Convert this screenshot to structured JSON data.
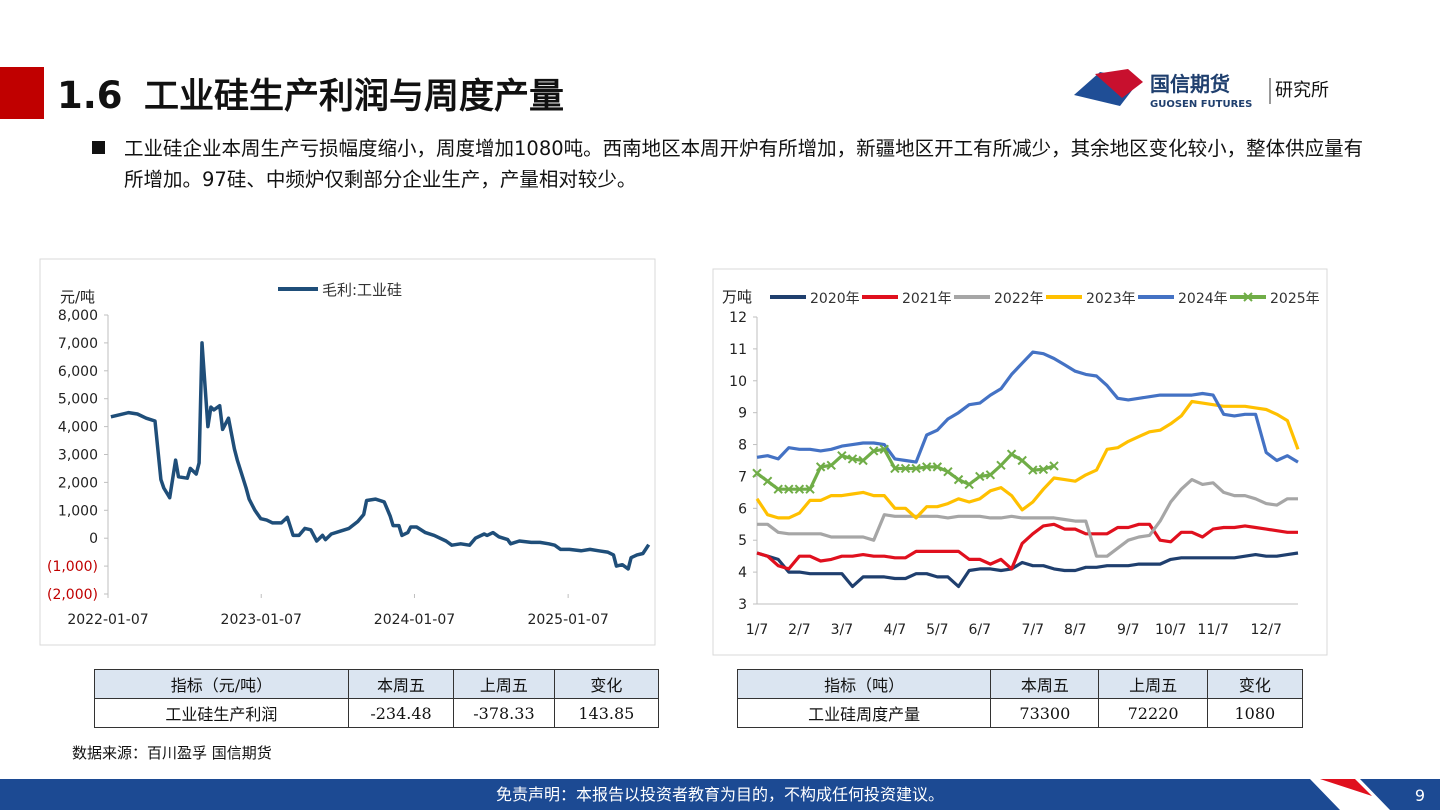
{
  "header": {
    "section": "1.6",
    "title": "工业硅生产利润与周度产量",
    "logo_cn": "国信期货",
    "logo_en": "GUOSEN FUTURES",
    "logo_dept": "研究所"
  },
  "bullet": "工业硅企业本周生产亏损幅度缩小，周度增加1080吨。西南地区本周开炉有所增加，新疆地区开工有所减少，其余地区变化较小，整体供应量有所增加。97硅、中频炉仅剩部分企业生产，产量相对较少。",
  "chart_data": [
    {
      "type": "line",
      "y_label": "元/吨",
      "grid": false,
      "legend": "top",
      "negative_label_color": "#c00000",
      "xlim": [
        "2022-01-07",
        "2025-07-21"
      ],
      "xticks": [
        "2022-01-07",
        "2023-01-07",
        "2024-01-07",
        "2025-01-07"
      ],
      "ylim": [
        -2000,
        8000
      ],
      "yticks": [
        {
          "value": 8000,
          "label": "8,000"
        },
        {
          "value": 7000,
          "label": "7,000"
        },
        {
          "value": 6000,
          "label": "6,000"
        },
        {
          "value": 5000,
          "label": "5,000"
        },
        {
          "value": 4000,
          "label": "4,000"
        },
        {
          "value": 3000,
          "label": "3,000"
        },
        {
          "value": 2000,
          "label": "2,000"
        },
        {
          "value": 1000,
          "label": "1,000"
        },
        0,
        {
          "value": -1000,
          "label": "(1,000)"
        },
        {
          "value": -2000,
          "label": "(2,000)"
        }
      ],
      "x": [
        "2022-01-14",
        "2022-01-28",
        "2022-02-25",
        "2022-03-18",
        "2022-04-08",
        "2022-04-29",
        "2022-05-13",
        "2022-05-20",
        "2022-06-03",
        "2022-06-17",
        "2022-06-24",
        "2022-07-15",
        "2022-07-22",
        "2022-08-05",
        "2022-08-12",
        "2022-08-19",
        "2022-09-02",
        "2022-09-09",
        "2022-09-16",
        "2022-09-30",
        "2022-10-07",
        "2022-10-21",
        "2022-11-04",
        "2022-11-11",
        "2022-12-02",
        "2022-12-09",
        "2022-12-23",
        "2023-01-06",
        "2023-01-20",
        "2023-02-03",
        "2023-02-24",
        "2023-03-10",
        "2023-03-24",
        "2023-04-07",
        "2023-04-21",
        "2023-05-05",
        "2023-05-19",
        "2023-06-02",
        "2023-06-09",
        "2023-06-23",
        "2023-07-14",
        "2023-08-04",
        "2023-08-25",
        "2023-09-08",
        "2023-09-15",
        "2023-10-06",
        "2023-10-27",
        "2023-11-10",
        "2023-11-17",
        "2023-12-01",
        "2023-12-08",
        "2023-12-22",
        "2023-12-29",
        "2024-01-12",
        "2024-02-02",
        "2024-02-23",
        "2024-03-22",
        "2024-04-05",
        "2024-04-26",
        "2024-05-17",
        "2024-05-31",
        "2024-06-21",
        "2024-06-28",
        "2024-07-12",
        "2024-07-26",
        "2024-08-16",
        "2024-08-23",
        "2024-09-13",
        "2024-10-11",
        "2024-11-01",
        "2024-11-22",
        "2024-12-06",
        "2024-12-20",
        "2025-01-10",
        "2025-02-07",
        "2025-02-28",
        "2025-03-21",
        "2025-04-11",
        "2025-04-25",
        "2025-05-02",
        "2025-05-16",
        "2025-05-30",
        "2025-06-06",
        "2025-06-20",
        "2025-07-04",
        "2025-07-18"
      ],
      "series": [
        {
          "name": "毛利:工业硅",
          "color": "#1f4e79",
          "values": [
            4350,
            4400,
            4500,
            4450,
            4300,
            4200,
            2100,
            1800,
            1450,
            2800,
            2200,
            2150,
            2500,
            2300,
            2700,
            7000,
            4000,
            4700,
            4600,
            4750,
            3900,
            4300,
            3200,
            2800,
            1800,
            1400,
            1000,
            700,
            650,
            550,
            550,
            750,
            100,
            100,
            350,
            300,
            -100,
            100,
            -50,
            150,
            250,
            350,
            600,
            850,
            1350,
            1400,
            1300,
            800,
            450,
            450,
            100,
            200,
            400,
            400,
            200,
            100,
            -100,
            -250,
            -200,
            -250,
            0,
            150,
            100,
            200,
            50,
            -50,
            -200,
            -100,
            -150,
            -150,
            -200,
            -250,
            -400,
            -400,
            -450,
            -400,
            -450,
            -500,
            -600,
            -1000,
            -950,
            -1100,
            -700,
            -600,
            -550,
            -234.48
          ]
        }
      ]
    },
    {
      "type": "line",
      "y_label": "万吨",
      "grid": false,
      "legend": "top",
      "ylim": [
        3,
        12
      ],
      "yticks": [
        3,
        4,
        5,
        6,
        7,
        8,
        9,
        10,
        11,
        12
      ],
      "categories": [
        "1/7",
        null,
        null,
        null,
        "2/7",
        null,
        null,
        null,
        "3/7",
        null,
        null,
        null,
        null,
        "4/7",
        null,
        null,
        null,
        "5/7",
        null,
        null,
        null,
        "6/7",
        null,
        null,
        null,
        null,
        "7/7",
        null,
        null,
        null,
        "8/7",
        null,
        null,
        null,
        null,
        "9/7",
        null,
        null,
        null,
        "10/7",
        null,
        null,
        null,
        "11/7",
        null,
        null,
        null,
        null,
        "12/7",
        null,
        null,
        null
      ],
      "series": [
        {
          "name": "2020年",
          "color": "#1f3f6e",
          "values": [
            4.6,
            4.5,
            4.4,
            4.0,
            4.0,
            3.95,
            3.95,
            3.95,
            3.95,
            3.55,
            3.85,
            3.85,
            3.85,
            3.8,
            3.8,
            3.95,
            3.95,
            3.85,
            3.85,
            3.55,
            4.05,
            4.1,
            4.1,
            4.05,
            4.1,
            4.3,
            4.2,
            4.2,
            4.1,
            4.05,
            4.05,
            4.15,
            4.15,
            4.2,
            4.2,
            4.2,
            4.25,
            4.25,
            4.25,
            4.4,
            4.45,
            4.45,
            4.45,
            4.45,
            4.45,
            4.45,
            4.5,
            4.55,
            4.5,
            4.5,
            4.55,
            4.6
          ]
        },
        {
          "name": "2021年",
          "color": "#e0101e",
          "values": [
            4.6,
            4.5,
            4.2,
            4.1,
            4.5,
            4.5,
            4.35,
            4.4,
            4.5,
            4.5,
            4.55,
            4.5,
            4.5,
            4.45,
            4.45,
            4.65,
            4.65,
            4.65,
            4.65,
            4.65,
            4.4,
            4.4,
            4.25,
            4.4,
            4.1,
            4.9,
            5.2,
            5.45,
            5.5,
            5.35,
            5.35,
            5.2,
            5.2,
            5.2,
            5.4,
            5.4,
            5.5,
            5.5,
            5.0,
            4.95,
            5.25,
            5.25,
            5.1,
            5.35,
            5.4,
            5.4,
            5.45,
            5.4,
            5.35,
            5.3,
            5.25,
            5.25
          ]
        },
        {
          "name": "2022年",
          "color": "#a6a6a6",
          "values": [
            5.5,
            5.5,
            5.25,
            5.2,
            5.2,
            5.2,
            5.2,
            5.1,
            5.1,
            5.1,
            5.1,
            5.0,
            5.8,
            5.75,
            5.75,
            5.75,
            5.75,
            5.75,
            5.7,
            5.75,
            5.75,
            5.75,
            5.7,
            5.7,
            5.75,
            5.7,
            5.7,
            5.7,
            5.7,
            5.65,
            5.6,
            5.6,
            4.5,
            4.5,
            4.75,
            5.0,
            5.1,
            5.15,
            5.6,
            6.2,
            6.6,
            6.9,
            6.75,
            6.8,
            6.5,
            6.4,
            6.4,
            6.3,
            6.15,
            6.1,
            6.3,
            6.3
          ]
        },
        {
          "name": "2023年",
          "color": "#ffc000",
          "values": [
            6.3,
            5.8,
            5.7,
            5.7,
            5.85,
            6.25,
            6.25,
            6.4,
            6.4,
            6.45,
            6.5,
            6.4,
            6.4,
            6.0,
            6.0,
            5.7,
            6.05,
            6.05,
            6.15,
            6.3,
            6.2,
            6.3,
            6.55,
            6.65,
            6.4,
            5.95,
            6.2,
            6.6,
            6.95,
            6.9,
            6.85,
            7.05,
            7.2,
            7.85,
            7.9,
            8.1,
            8.25,
            8.4,
            8.45,
            8.65,
            8.9,
            9.35,
            9.3,
            9.25,
            9.2,
            9.2,
            9.2,
            9.15,
            9.1,
            8.95,
            8.75,
            7.85
          ]
        },
        {
          "name": "2024年",
          "color": "#4472c4",
          "values": [
            7.6,
            7.65,
            7.55,
            7.9,
            7.85,
            7.85,
            7.8,
            7.85,
            7.95,
            8.0,
            8.05,
            8.05,
            8.0,
            7.55,
            7.5,
            7.45,
            8.3,
            8.45,
            8.8,
            9.0,
            9.25,
            9.3,
            9.55,
            9.75,
            10.2,
            10.55,
            10.9,
            10.85,
            10.7,
            10.5,
            10.3,
            10.2,
            10.15,
            9.85,
            9.45,
            9.4,
            9.45,
            9.5,
            9.55,
            9.55,
            9.55,
            9.55,
            9.6,
            9.55,
            8.95,
            8.9,
            8.95,
            8.95,
            7.75,
            7.5,
            7.65,
            7.45
          ]
        },
        {
          "name": "2025年",
          "color": "#70ad47",
          "marker": "x",
          "values": [
            7.1,
            6.85,
            6.6,
            6.6,
            6.6,
            6.6,
            7.3,
            7.35,
            7.65,
            7.55,
            7.5,
            7.8,
            7.85,
            7.25,
            7.25,
            7.25,
            7.3,
            7.3,
            7.15,
            6.9,
            6.75,
            7.0,
            7.05,
            7.35,
            7.7,
            7.5,
            7.2,
            7.22,
            7.33,
            null,
            null,
            null,
            null,
            null,
            null,
            null,
            null,
            null,
            null,
            null,
            null,
            null,
            null,
            null,
            null,
            null,
            null,
            null,
            null,
            null,
            null,
            null
          ]
        }
      ]
    }
  ],
  "tables": [
    {
      "header": [
        "指标（元/吨）",
        "本周五",
        "上周五",
        "变化"
      ],
      "rows": [
        [
          "工业硅生产利润",
          "-234.48",
          "-378.33",
          "143.85"
        ]
      ]
    },
    {
      "header": [
        "指标（吨）",
        "本周五",
        "上周五",
        "变化"
      ],
      "rows": [
        [
          "工业硅周度产量",
          "73300",
          "72220",
          "1080"
        ]
      ]
    }
  ],
  "source": "数据来源：百川盈孚  国信期货",
  "footer": {
    "disclaimer": "免责声明：本报告以投资者教育为目的，不构成任何投资建议。",
    "page": "9"
  }
}
